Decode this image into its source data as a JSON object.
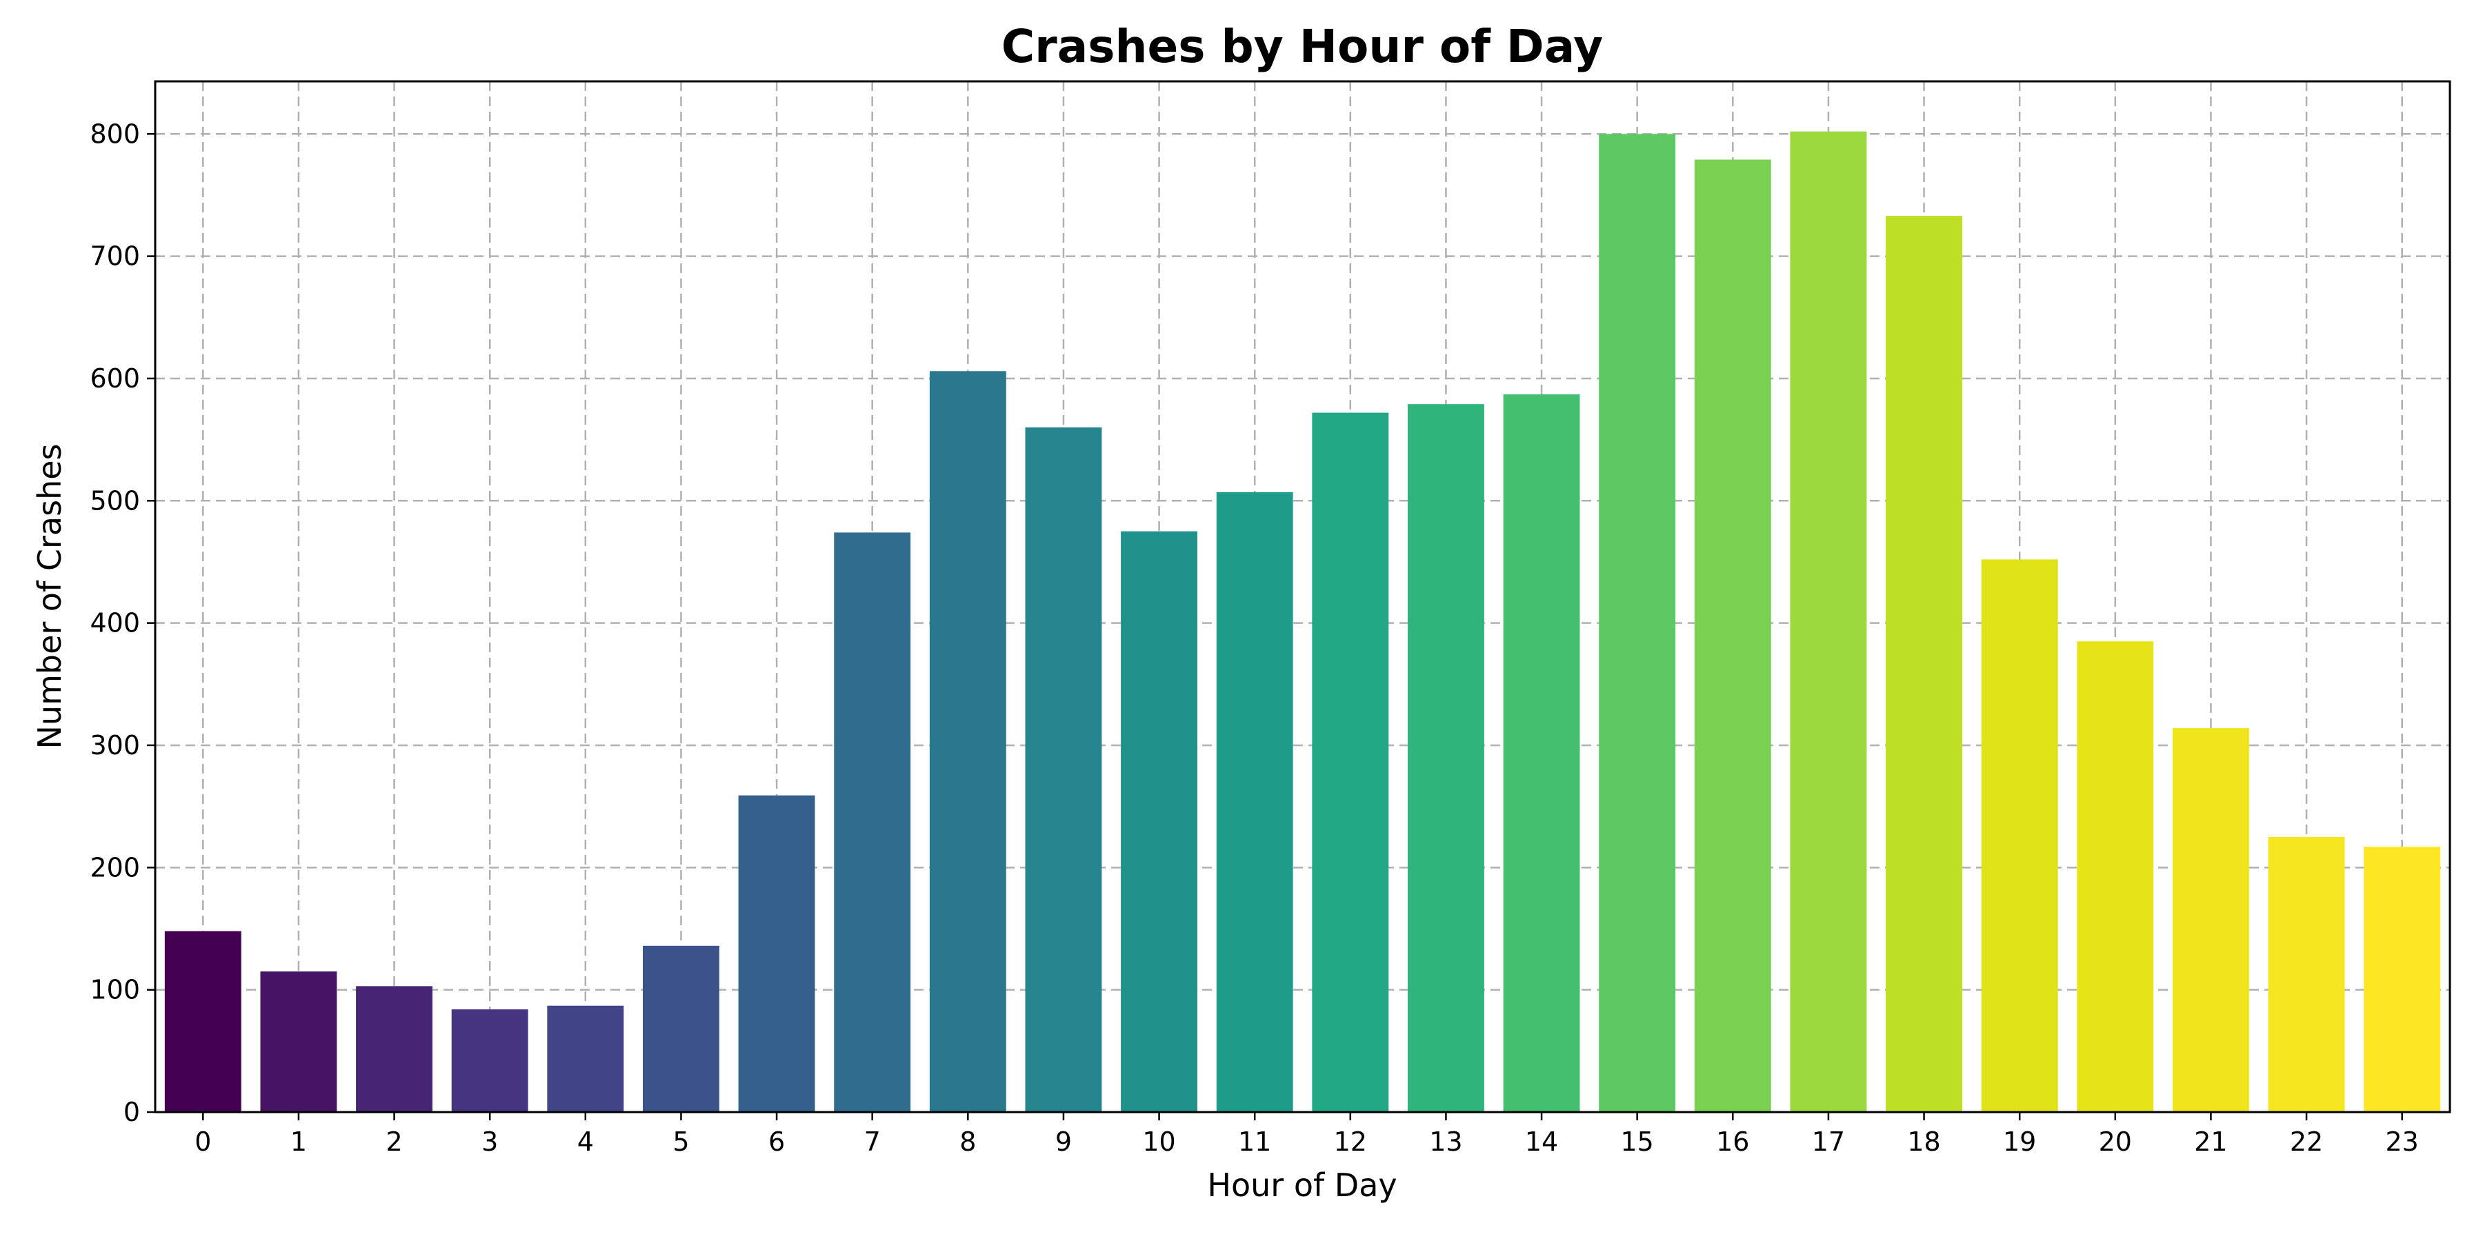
{
  "chart_data": {
    "type": "bar",
    "title": "Crashes by Hour of Day",
    "xlabel": "Hour of Day",
    "ylabel": "Number of Crashes",
    "categories": [
      "0",
      "1",
      "2",
      "3",
      "4",
      "5",
      "6",
      "7",
      "8",
      "9",
      "10",
      "11",
      "12",
      "13",
      "14",
      "15",
      "16",
      "17",
      "18",
      "19",
      "20",
      "21",
      "22",
      "23"
    ],
    "values": [
      148,
      115,
      103,
      84,
      87,
      136,
      259,
      474,
      606,
      560,
      475,
      507,
      572,
      579,
      587,
      800,
      779,
      802,
      733,
      452,
      385,
      314,
      225,
      217
    ],
    "ylim": [
      0,
      843
    ],
    "yticks": [
      0,
      100,
      200,
      300,
      400,
      500,
      600,
      700,
      800
    ],
    "grid": true,
    "colors": [
      "#440154",
      "#471365",
      "#482475",
      "#463480",
      "#414487",
      "#3b528b",
      "#355f8d",
      "#2f6c8e",
      "#2a788e",
      "#25848e",
      "#21918c",
      "#1e9c89",
      "#22a884",
      "#2fb47c",
      "#44bf70",
      "#5ec962",
      "#7ad151",
      "#9bd93c",
      "#bddf26",
      "#dfe318",
      "#e6e419",
      "#f0e51c",
      "#f6e620",
      "#fde725"
    ]
  }
}
